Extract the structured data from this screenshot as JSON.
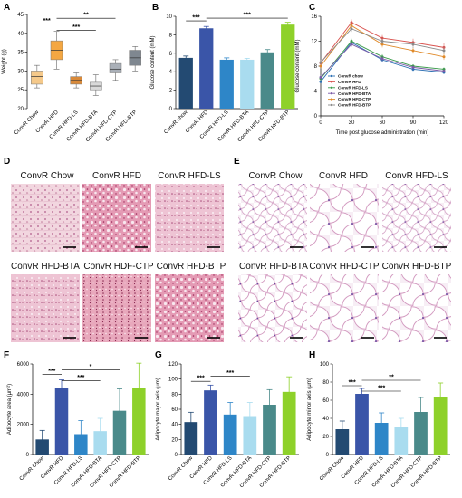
{
  "panel_labels": [
    "A",
    "B",
    "C",
    "D",
    "E",
    "F",
    "G",
    "H"
  ],
  "colors": {
    "ConvR Chow": "#234a72",
    "ConvR HFD": "#3a55a8",
    "ConvR HFD-LS": "#2e86c8",
    "ConvR HFD-BTA": "#a9dcef",
    "ConvR HFD-CTP": "#4a8a8a",
    "ConvR HFD-BTP": "#8ed12a",
    "box_chow": "#f5c98a",
    "box_hfd": "#f4a742",
    "box_ls": "#d98a3a",
    "box_bta": "#d9d9d9",
    "box_ctp": "#aab0b8",
    "box_btp": "#7f8790"
  },
  "micro_d": {
    "titles": [
      "ConvR Chow",
      "ConvR HFD",
      "ConvR HFD-LS",
      "ConvR HFD-BTA",
      "ConvR HDF-CTP",
      "ConvR HFD-BTP"
    ],
    "image_desc": [
      "H&E liver section chow",
      "H&E liver section HFD",
      "H&E liver section HFD-LS",
      "H&E liver section HFD-BTA",
      "H&E liver section HFD-CTP",
      "H&E liver section HFD-BTP"
    ]
  },
  "micro_e": {
    "titles": [
      "ConvR Chow",
      "ConvR HFD",
      "ConvR HFD-LS",
      "ConvR HFD-BTA",
      "ConvR HFD-CTP",
      "ConvR HFD-BTP"
    ],
    "image_desc": [
      "H&E adipose section chow",
      "H&E adipose section HFD",
      "H&E adipose section HFD-LS",
      "H&E adipose section HFD-BTA",
      "H&E adipose section HFD-CTP",
      "H&E adipose section HFD-BTP"
    ]
  },
  "chart_data": [
    {
      "id": "A",
      "type": "box",
      "categories": [
        "ConvR Chow",
        "ConvR HFD",
        "ConvR HFD-LS",
        "ConvR HFD-BTA",
        "ConvR HFD-CTP",
        "ConvR HFD-BTP"
      ],
      "boxes": [
        {
          "min": 25.5,
          "q1": 26.5,
          "median": 28.5,
          "q3": 30.0,
          "max": 31.5
        },
        {
          "min": 30.5,
          "q1": 33.0,
          "median": 35.5,
          "q3": 38.0,
          "max": 40.5
        },
        {
          "min": 25.5,
          "q1": 26.5,
          "median": 27.5,
          "q3": 28.5,
          "max": 29.5
        },
        {
          "min": 23.5,
          "q1": 25.0,
          "median": 26.0,
          "q3": 27.0,
          "max": 29.0
        },
        {
          "min": 27.5,
          "q1": 29.5,
          "median": 30.5,
          "q3": 32.0,
          "max": 33.0
        },
        {
          "min": 30.0,
          "q1": 31.5,
          "median": 33.5,
          "q3": 35.5,
          "max": 36.5
        }
      ],
      "ylabel": "Weight (g)",
      "ylim": [
        20,
        45
      ],
      "yticks": [
        20,
        25,
        30,
        35,
        40,
        45
      ],
      "significance": [
        {
          "from": 0,
          "to": 1,
          "label": "***",
          "level": 42.5
        },
        {
          "from": 1,
          "to": 4,
          "label": "**",
          "level": 44.0
        },
        {
          "from": 1,
          "to": 3,
          "label": "***",
          "level": 40.8
        }
      ]
    },
    {
      "id": "B",
      "type": "bar",
      "categories": [
        "ConvR chow",
        "ConvR HFD",
        "ConvR HFD-LS",
        "ConvR HFD-BTA",
        "ConvR HFD-CTP",
        "ConvR HFD-BTP"
      ],
      "values": [
        5.5,
        8.7,
        5.3,
        5.3,
        6.1,
        9.1
      ],
      "errors": [
        0.2,
        0.2,
        0.2,
        0.15,
        0.3,
        0.25
      ],
      "ylabel": "Glucose content (mM)",
      "ylim": [
        0,
        10
      ],
      "yticks": [
        0,
        2,
        4,
        6,
        8,
        10
      ],
      "significance": [
        {
          "from": 0,
          "to": 1,
          "label": "***",
          "level": 9.5
        },
        {
          "from": 1,
          "to": 5,
          "label": "***",
          "level": 9.8
        }
      ]
    },
    {
      "id": "C",
      "type": "line",
      "x": [
        0,
        30,
        60,
        90,
        120
      ],
      "series": [
        {
          "name": "ConvR chow",
          "values": [
            5.5,
            11.8,
            9.0,
            7.5,
            7.0
          ],
          "errors": [
            0.3,
            0.4,
            0.4,
            0.3,
            0.3
          ]
        },
        {
          "name": "ConvR HFD",
          "values": [
            8.5,
            15.0,
            12.5,
            11.8,
            11.0
          ],
          "errors": [
            0.4,
            0.5,
            0.5,
            0.6,
            0.7
          ]
        },
        {
          "name": "ConvR HFD-LS",
          "values": [
            6.0,
            12.0,
            9.5,
            8.0,
            7.5
          ],
          "errors": [
            0.3,
            0.4,
            0.4,
            0.3,
            0.3
          ]
        },
        {
          "name": "ConvR HFD-BTA",
          "values": [
            6.2,
            11.5,
            9.2,
            7.8,
            7.2
          ],
          "errors": [
            0.3,
            0.4,
            0.4,
            0.3,
            0.3
          ]
        },
        {
          "name": "ConvR HFD-CTP",
          "values": [
            8.0,
            14.5,
            11.5,
            10.5,
            9.5
          ],
          "errors": [
            0.4,
            0.5,
            0.5,
            0.5,
            0.5
          ]
        },
        {
          "name": "ConvR HFD-BTP",
          "values": [
            8.6,
            14.0,
            12.0,
            11.5,
            10.5
          ],
          "errors": [
            0.4,
            0.5,
            0.5,
            0.6,
            0.6
          ]
        }
      ],
      "series_colors": [
        "#2b6fb3",
        "#d9534f",
        "#3a9a4a",
        "#7b5ba8",
        "#e08a2a",
        "#8a8a8a"
      ],
      "xlabel": "Time post glucose administration (min)",
      "ylabel": "Glucose content (mM)",
      "ylim": [
        0,
        16
      ],
      "yticks": [
        0,
        4,
        8,
        12,
        16
      ],
      "xticks": [
        0,
        30,
        60,
        90,
        120
      ],
      "legend": "bottom-left"
    },
    {
      "id": "F",
      "type": "bar",
      "categories": [
        "ConvR Chow",
        "ConvR HFD",
        "ConvR HFD-LS",
        "ConvR HFD-BTA",
        "ConvR HFD-CTP",
        "ConvR HFD-BTP"
      ],
      "values": [
        1000,
        4400,
        1350,
        1550,
        2900,
        4400
      ],
      "errors": [
        600,
        550,
        900,
        850,
        1450,
        1650
      ],
      "ylabel": "Adipocyte area (μm²)",
      "ylim": [
        0,
        6000
      ],
      "yticks": [
        0,
        2000,
        4000,
        6000
      ],
      "significance": [
        {
          "from": 0,
          "to": 1,
          "label": "***",
          "level": 5300
        },
        {
          "from": 1,
          "to": 3,
          "label": "***",
          "level": 4900
        },
        {
          "from": 1,
          "to": 4,
          "label": "*",
          "level": 5600
        }
      ]
    },
    {
      "id": "G",
      "type": "bar",
      "categories": [
        "ConvR Chow",
        "ConvR HFD",
        "ConvR HFD-LS",
        "ConvR HFD-BTA",
        "ConvR HFD-CTP",
        "ConvR HFD-BTP"
      ],
      "values": [
        43,
        85,
        53,
        51,
        66,
        83
      ],
      "errors": [
        13,
        7,
        16,
        18,
        20,
        20
      ],
      "ylabel": "Adipocyte major axis (μm)",
      "ylim": [
        0,
        120
      ],
      "yticks": [
        0,
        20,
        40,
        60,
        80,
        100,
        120
      ],
      "significance": [
        {
          "from": 0,
          "to": 1,
          "label": "***",
          "level": 97
        },
        {
          "from": 1,
          "to": 3,
          "label": "***",
          "level": 104
        }
      ]
    },
    {
      "id": "H",
      "type": "bar",
      "categories": [
        "ConvR Chow",
        "ConvR HFD",
        "ConvR HFD-LS",
        "ConvR HFD-BTA",
        "ConvR HFD-CTP",
        "ConvR HFD-BTP"
      ],
      "values": [
        28,
        67,
        35,
        30,
        47,
        64
      ],
      "errors": [
        9,
        6,
        11,
        10,
        16,
        15
      ],
      "ylabel": "Adipocyte minor axis (μm)",
      "ylim": [
        0,
        100
      ],
      "yticks": [
        0,
        20,
        40,
        60,
        80,
        100
      ],
      "significance": [
        {
          "from": 0,
          "to": 1,
          "label": "***",
          "level": 76
        },
        {
          "from": 1,
          "to": 3,
          "label": "***",
          "level": 70
        },
        {
          "from": 1,
          "to": 4,
          "label": "**",
          "level": 82
        }
      ]
    }
  ]
}
